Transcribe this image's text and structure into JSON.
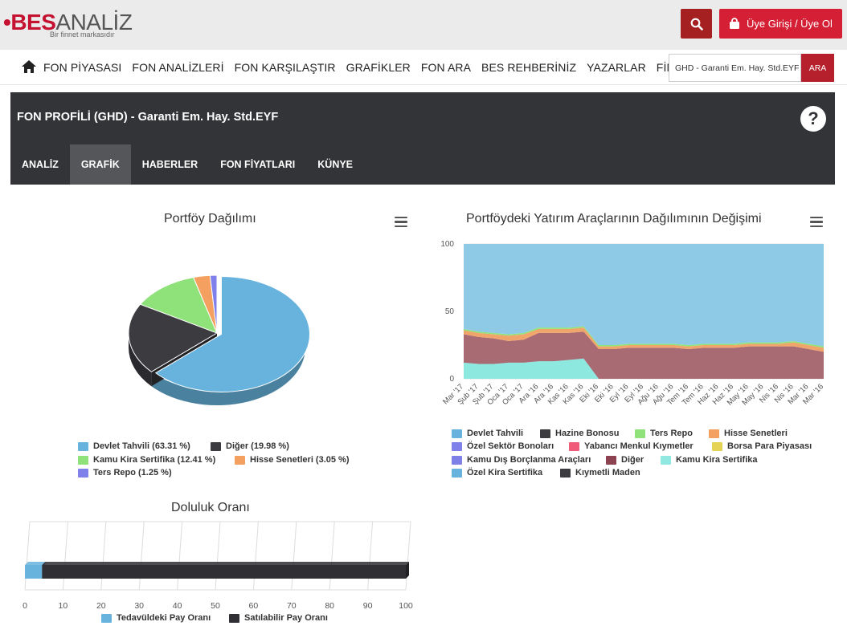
{
  "header": {
    "logo_bes": "BES",
    "logo_analiz": "ANALİZ",
    "logo_sub": "Bir finnet markasıdır",
    "search_icon": "search-icon",
    "login_label": "Üye Girişi / Üye Ol",
    "login_icon": "bag-icon"
  },
  "nav": {
    "home_icon": "home-icon",
    "items": [
      "FON PİYASASI",
      "FON ANALİZLERİ",
      "FON KARŞILAŞTIR",
      "GRAFİKLER",
      "FON ARA",
      "BES REHBERİNİZ",
      "YAZARLAR",
      "FİNNET"
    ],
    "fund_select": "GHD - Garanti Em. Hay. Std.EYF",
    "search_button": "ARA"
  },
  "profile": {
    "title": "FON PROFİLİ (GHD) - Garanti Em. Hay. Std.EYF",
    "help_icon": "question-icon",
    "tabs": [
      "ANALİZ",
      "GRAFİK",
      "HABERLER",
      "FON FİYATLARI",
      "KÜNYE"
    ],
    "active_tab": "GRAFİK"
  },
  "colors": {
    "accent": "#d51f35",
    "dark_red": "#a52020",
    "panel": "#333438",
    "active_tab": "#55565a"
  },
  "chart_data": [
    {
      "type": "pie",
      "title": "Portföy Dağılımı",
      "categories": [
        "Devlet Tahvili",
        "Diğer",
        "Kamu Kira Sertifika",
        "Hisse Senetleri",
        "Ters Repo"
      ],
      "values": [
        63.31,
        19.98,
        12.41,
        3.05,
        1.25
      ],
      "colors": [
        "#67b3dd",
        "#3b3b40",
        "#8fe27a",
        "#f4a060",
        "#8080ea"
      ],
      "legend": [
        "Devlet Tahvili (63.31 %)",
        "Diğer (19.98 %)",
        "Kamu Kira Sertifika (12.41 %)",
        "Hisse Senetleri (3.05 %)",
        "Ters Repo (1.25 %)"
      ],
      "legend_position": "bottom"
    },
    {
      "type": "area",
      "title": "Portföydeki Yatırım Araçlarının Dağılımının Değişimi",
      "x": [
        "Mar '17",
        "Şub '17",
        "Şub '17",
        "Oca '17",
        "Oca '17",
        "Ara '16",
        "Ara '16",
        "Kas '16",
        "Kas '16",
        "Eki '16",
        "Eki '16",
        "Eyl '16",
        "Eyl '16",
        "Ağu '16",
        "Ağu '16",
        "Tem '16",
        "Tem '16",
        "Haz '16",
        "Haz '16",
        "May '16",
        "May '16",
        "Nis '16",
        "Nis '16",
        "Mar '16",
        "Mar '16"
      ],
      "ylim": [
        0,
        100
      ],
      "yticks": [
        0,
        50,
        100
      ],
      "series": [
        {
          "name": "Kamu Kira Sertifika",
          "color": "#8de8e0",
          "values": [
            12,
            11,
            11,
            12,
            12,
            13,
            13,
            14,
            15,
            0,
            0,
            0,
            0,
            0,
            0,
            0,
            0,
            0,
            0,
            0,
            0,
            0,
            0,
            0,
            0
          ]
        },
        {
          "name": "Diğer",
          "color": "#a86a73",
          "values": [
            21,
            20,
            19,
            16,
            17,
            21,
            21,
            20,
            20,
            22,
            22,
            23,
            23,
            23,
            23,
            22,
            23,
            23,
            23,
            24,
            24,
            24,
            24,
            22,
            20
          ]
        },
        {
          "name": "Hisse Senetleri",
          "color": "#f0a56a",
          "values": [
            3,
            3,
            3,
            4,
            4,
            3,
            3,
            3,
            3,
            2,
            2,
            2,
            2,
            2,
            2,
            2,
            2,
            2,
            2,
            2,
            2,
            2,
            3,
            3,
            3
          ]
        },
        {
          "name": "Ters Repo",
          "color": "#8fe27a",
          "values": [
            1,
            1,
            1,
            1,
            1,
            1,
            1,
            1,
            1,
            1,
            1,
            1,
            1,
            1,
            1,
            1,
            1,
            1,
            1,
            1,
            1,
            1,
            1,
            1,
            1
          ]
        },
        {
          "name": "Devlet Tahvili",
          "color": "#8ecae6",
          "values": [
            63,
            65,
            66,
            67,
            66,
            62,
            62,
            62,
            61,
            75,
            75,
            74,
            74,
            74,
            74,
            75,
            74,
            74,
            74,
            73,
            73,
            73,
            72,
            74,
            76
          ]
        }
      ],
      "legend": [
        "Devlet Tahvili",
        "Hazine Bonosu",
        "Ters Repo",
        "Hisse Senetleri",
        "Özel Sektör Bonoları",
        "Yabancı Menkul Kıymetler",
        "Borsa Para Piyasası",
        "Kamu Dış Borçlanma Araçları",
        "Diğer",
        "Kamu Kira Sertifika",
        "Özel Kira Sertifika",
        "Kıymetli Maden"
      ],
      "legend_colors": [
        "#67b3dd",
        "#3b3b40",
        "#8fe27a",
        "#f4a060",
        "#8080ea",
        "#f05b7a",
        "#e4d354",
        "#7f7fe8",
        "#8c4250",
        "#91e8e1",
        "#67b3dd",
        "#3b3b40"
      ],
      "legend_position": "bottom"
    },
    {
      "type": "bar",
      "title": "Doluluk Oranı",
      "orientation": "horizontal-stacked",
      "series": [
        {
          "name": "Tedavüldeki Pay Oranı",
          "color": "#67b3dd",
          "values": [
            4.5
          ]
        },
        {
          "name": "Satılabilir Pay Oranı",
          "color": "#2f2f34",
          "values": [
            95.5
          ]
        }
      ],
      "xlim": [
        0,
        100
      ],
      "xticks": [
        0,
        10,
        20,
        30,
        40,
        50,
        60,
        70,
        80,
        90,
        100
      ],
      "legend_position": "bottom"
    }
  ]
}
